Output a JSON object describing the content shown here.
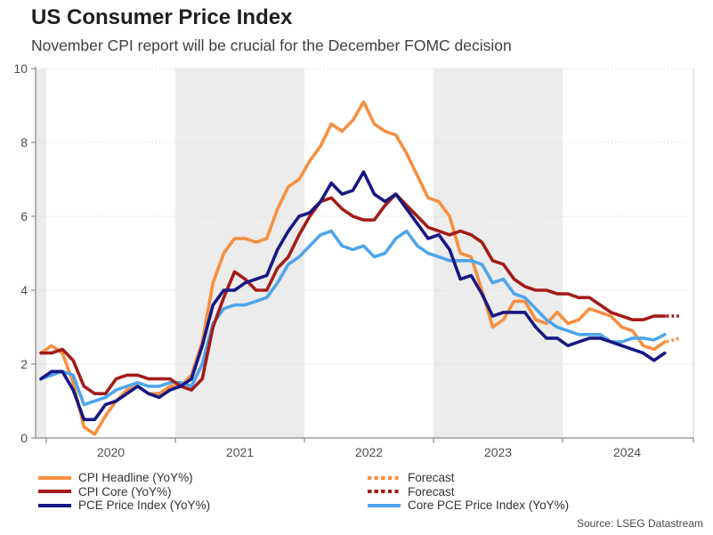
{
  "header": {
    "title": "US Consumer Price Index",
    "subtitle": "November CPI report will be crucial for the December FOMC decision"
  },
  "source": "Source: LSEG Datastream",
  "legend": {
    "left": [
      {
        "label": "CPI Headline (YoY%)",
        "color": "#F78F41",
        "style": "solid"
      },
      {
        "label": "CPI Core (YoY%)",
        "color": "#A31C18",
        "style": "solid"
      },
      {
        "label": "PCE Price Index (YoY%)",
        "color": "#171784",
        "style": "solid"
      }
    ],
    "right": [
      {
        "label": "Forecast",
        "color": "#F78F41",
        "style": "dotted"
      },
      {
        "label": "Forecast",
        "color": "#A31C18",
        "style": "dotted"
      },
      {
        "label": "Core PCE Price Index (YoY%)",
        "color": "#4FA5EA",
        "style": "solid"
      }
    ]
  },
  "chart_data": {
    "type": "line",
    "title": "US Consumer Price Index",
    "subtitle": "November CPI report will be crucial for the December FOMC decision",
    "x_start_month": "2019-12",
    "x_frequency": "monthly",
    "x_tick_years": [
      2020,
      2021,
      2022,
      2023,
      2024
    ],
    "ylim": [
      0,
      10
    ],
    "y_ticks": [
      0,
      2,
      4,
      6,
      8,
      10
    ],
    "grid": "horizontal-dotted",
    "shaded_year_bands": [
      2019,
      2021,
      2023
    ],
    "legend_position": "bottom",
    "colors": {
      "band": "#ECECEC",
      "grid": "#D8D8D8",
      "axis": "#8A8A8A",
      "right_border": "#CFCFCF",
      "tick_label": "#4D4D4D"
    },
    "series": [
      {
        "name": "CPI Headline (YoY%)",
        "color": "#F78F41",
        "values": [
          2.3,
          2.5,
          2.3,
          1.5,
          0.3,
          0.1,
          0.6,
          1.0,
          1.3,
          1.4,
          1.2,
          1.2,
          1.4,
          1.4,
          1.7,
          2.6,
          4.2,
          5.0,
          5.4,
          5.4,
          5.3,
          5.4,
          6.2,
          6.8,
          7.0,
          7.5,
          7.9,
          8.5,
          8.3,
          8.6,
          9.1,
          8.5,
          8.3,
          8.2,
          7.7,
          7.1,
          6.5,
          6.4,
          6.0,
          5.0,
          4.9,
          4.0,
          3.0,
          3.2,
          3.7,
          3.7,
          3.2,
          3.1,
          3.4,
          3.1,
          3.2,
          3.5,
          3.4,
          3.3,
          3.0,
          2.9,
          2.5,
          2.4,
          2.6
        ]
      },
      {
        "name": "CPI Core (YoY%)",
        "color": "#A31C18",
        "values": [
          2.3,
          2.3,
          2.4,
          2.1,
          1.4,
          1.2,
          1.2,
          1.6,
          1.7,
          1.7,
          1.6,
          1.6,
          1.6,
          1.4,
          1.3,
          1.6,
          3.0,
          3.8,
          4.5,
          4.3,
          4.0,
          4.0,
          4.6,
          4.9,
          5.5,
          6.0,
          6.4,
          6.5,
          6.2,
          6.0,
          5.9,
          5.9,
          6.3,
          6.6,
          6.3,
          6.0,
          5.7,
          5.6,
          5.5,
          5.6,
          5.5,
          5.3,
          4.8,
          4.7,
          4.3,
          4.1,
          4.0,
          4.0,
          3.9,
          3.9,
          3.8,
          3.8,
          3.6,
          3.4,
          3.3,
          3.2,
          3.2,
          3.3,
          3.3
        ]
      },
      {
        "name": "PCE Price Index (YoY%)",
        "color": "#171784",
        "values": [
          1.6,
          1.8,
          1.8,
          1.3,
          0.5,
          0.5,
          0.9,
          1.0,
          1.2,
          1.4,
          1.2,
          1.1,
          1.3,
          1.4,
          1.6,
          2.5,
          3.6,
          4.0,
          4.0,
          4.2,
          4.3,
          4.4,
          5.1,
          5.6,
          6.0,
          6.1,
          6.4,
          6.9,
          6.6,
          6.7,
          7.2,
          6.6,
          6.4,
          6.6,
          6.2,
          5.8,
          5.4,
          5.5,
          5.1,
          4.3,
          4.4,
          3.9,
          3.3,
          3.4,
          3.4,
          3.4,
          3.0,
          2.7,
          2.7,
          2.5,
          2.6,
          2.7,
          2.7,
          2.6,
          2.5,
          2.4,
          2.3,
          2.1,
          2.3
        ]
      },
      {
        "name": "Core PCE Price Index (YoY%)",
        "color": "#4FA5EA",
        "values": [
          1.6,
          1.7,
          1.8,
          1.7,
          0.9,
          1.0,
          1.1,
          1.3,
          1.4,
          1.5,
          1.4,
          1.4,
          1.5,
          1.5,
          1.4,
          2.0,
          3.1,
          3.5,
          3.6,
          3.6,
          3.7,
          3.8,
          4.2,
          4.7,
          4.9,
          5.2,
          5.5,
          5.6,
          5.2,
          5.1,
          5.2,
          4.9,
          5.0,
          5.4,
          5.6,
          5.2,
          5.0,
          4.9,
          4.8,
          4.8,
          4.8,
          4.7,
          4.2,
          4.3,
          3.9,
          3.8,
          3.5,
          3.2,
          3.0,
          2.9,
          2.8,
          2.8,
          2.8,
          2.6,
          2.6,
          2.7,
          2.7,
          2.65,
          2.8
        ]
      }
    ],
    "z_order": [
      "CPI Headline (YoY%)",
      "Core PCE Price Index (YoY%)",
      "CPI Core (YoY%)",
      "PCE Price Index (YoY%)"
    ],
    "forecasts": [
      {
        "series": "CPI Headline (YoY%)",
        "label": "Forecast",
        "month": "2024-11",
        "value": 2.7,
        "style": "dotted"
      },
      {
        "series": "CPI Core (YoY%)",
        "label": "Forecast",
        "month": "2024-11",
        "value": 3.3,
        "style": "dotted"
      }
    ]
  }
}
